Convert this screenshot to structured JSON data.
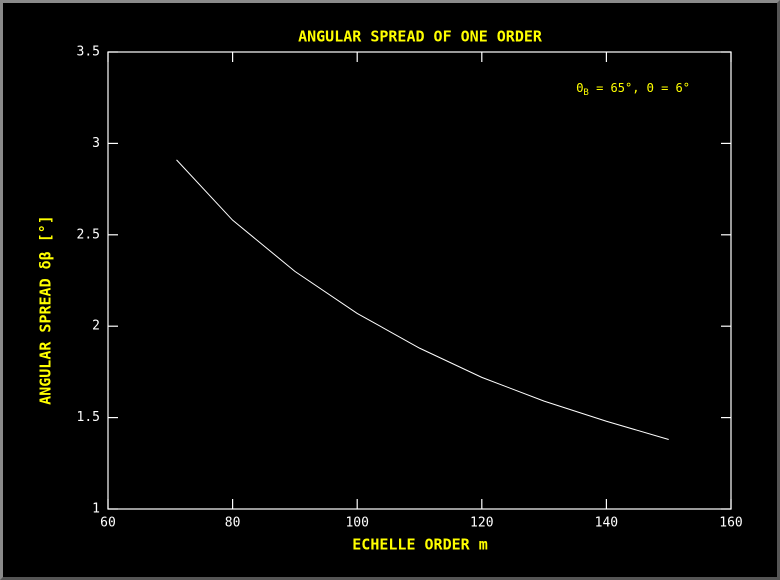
{
  "chart_data": {
    "type": "line",
    "title": "ANGULAR SPREAD OF ONE ORDER",
    "x_label": "ECHELLE ORDER m",
    "y_label": "ANGULAR SPREAD δβ [°]",
    "annotation": {
      "symbol": "Θ",
      "subscript": "B",
      "rest": " = 65°,  Θ = 6°"
    },
    "x": [
      71,
      80,
      90,
      100,
      110,
      120,
      130,
      140,
      150
    ],
    "series": [
      {
        "color": "#ffffff",
        "values": [
          2.91,
          2.58,
          2.3,
          2.07,
          1.88,
          1.72,
          1.59,
          1.48,
          1.38
        ]
      }
    ],
    "xlim": [
      60,
      160
    ],
    "xticks": [
      60,
      80,
      100,
      120,
      140,
      160
    ],
    "ylim": [
      1,
      3.5
    ],
    "yticks": [
      1,
      1.5,
      2,
      2.5,
      3,
      3.5
    ]
  }
}
